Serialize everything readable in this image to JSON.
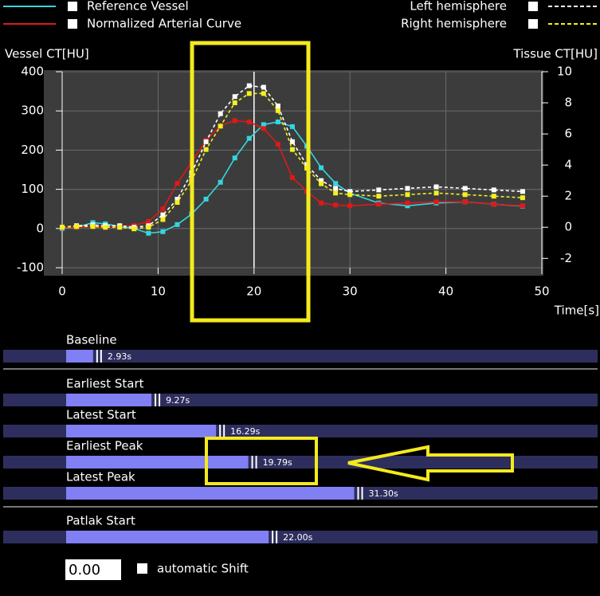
{
  "chart_data": {
    "type": "line",
    "y_label": "Vessel CT[HU]",
    "y2_label": "Tissue CT[HU]",
    "x_label": "Time[s]",
    "x": [
      0,
      1.5,
      3.2,
      4.5,
      6,
      7.5,
      9,
      10.5,
      12,
      13.5,
      15,
      16.5,
      18,
      19.5,
      21,
      22.5,
      24,
      25.5,
      27,
      28.5,
      30,
      33,
      36,
      39,
      42,
      45,
      48
    ],
    "xlim": [
      0,
      50
    ],
    "xticks": [
      0,
      10,
      20,
      30,
      40,
      50
    ],
    "ylim": [
      -100,
      400
    ],
    "yticks": [
      -100,
      0,
      100,
      200,
      300,
      400
    ],
    "y2lim": [
      -2.6,
      10
    ],
    "y2ticks": [
      -2,
      0,
      2,
      4,
      6,
      8,
      10
    ],
    "grid": true,
    "cursor_x": 20,
    "series": [
      {
        "name": "Reference Vessel",
        "color": "#33d6e0",
        "style": "solid",
        "values": [
          0,
          3,
          15,
          12,
          5,
          0,
          -12,
          -8,
          10,
          37,
          75,
          118,
          180,
          230,
          265,
          272,
          260,
          210,
          155,
          115,
          90,
          65,
          58,
          65,
          68,
          62,
          57
        ]
      },
      {
        "name": "Normalized Arterial Curve",
        "color": "#e01818",
        "style": "solid",
        "values": [
          2,
          3,
          5,
          3,
          5,
          8,
          18,
          50,
          115,
          170,
          225,
          262,
          275,
          272,
          255,
          215,
          130,
          95,
          65,
          60,
          58,
          62,
          65,
          68,
          68,
          62,
          58
        ]
      },
      {
        "name": "Left hemisphere",
        "color": "#ffffff",
        "style": "dashed",
        "axis": "y2",
        "values": [
          0,
          0.1,
          0.15,
          0.1,
          0.1,
          0,
          0.1,
          0.8,
          1.8,
          3.5,
          5.5,
          7.3,
          8.4,
          9.1,
          9.0,
          7.8,
          5.5,
          4.0,
          3.0,
          2.5,
          2.3,
          2.4,
          2.5,
          2.6,
          2.5,
          2.4,
          2.3
        ]
      },
      {
        "name": "Right hemisphere",
        "color": "#f4f020",
        "style": "dashed",
        "axis": "y2",
        "values": [
          0,
          0.05,
          0.05,
          0,
          0,
          -0.1,
          0,
          0.5,
          1.6,
          3.0,
          5.0,
          6.5,
          8.0,
          8.6,
          8.6,
          7.5,
          5.0,
          3.8,
          2.8,
          2.2,
          2.1,
          2.0,
          2.1,
          2.2,
          2.1,
          2.0,
          1.9
        ]
      }
    ]
  },
  "sliders": {
    "labels": [
      "Baseline",
      "Earliest Start",
      "Latest Start",
      "Earliest Peak",
      "Latest Peak",
      "Patlak Start"
    ],
    "values": [
      2.93,
      9.27,
      16.29,
      19.79,
      31.3,
      22.0
    ],
    "value_labels": [
      "2.93s",
      "9.27s",
      "16.29s",
      "19.79s",
      "31.30s",
      "22.00s"
    ]
  },
  "shift": {
    "value": "0.00",
    "checkbox_label": "automatic Shift"
  }
}
